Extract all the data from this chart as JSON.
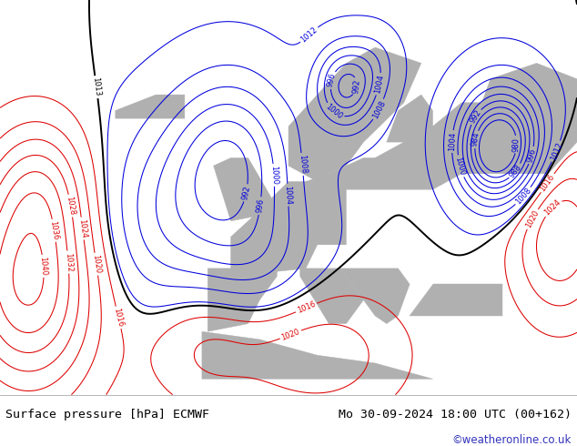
{
  "title_left": "Surface pressure [hPa] ECMWF",
  "title_right": "Mo 30-09-2024 18:00 UTC (00+162)",
  "watermark": "©weatheronline.co.uk",
  "sea_color": "#b0dca8",
  "land_color": "#b0b0b0",
  "blue_color": "#0000dd",
  "black_color": "#000000",
  "red_color": "#dd0000",
  "watermark_color": "#3333bb",
  "bottom_bar_color": "#ffffff",
  "title_font_size": 9.5
}
